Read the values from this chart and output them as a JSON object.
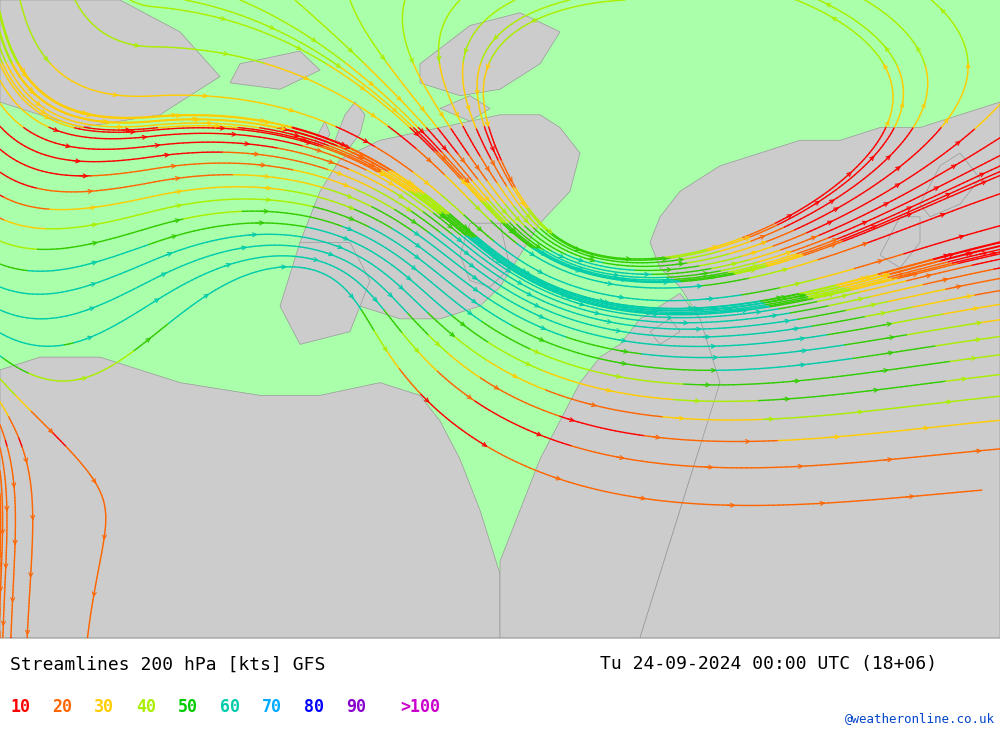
{
  "title_left": "Streamlines 200 hPa [kts] GFS",
  "title_right": "Tu 24-09-2024 00:00 UTC (18+06)",
  "credit": "@weatheronline.co.uk",
  "legend_values": [
    "10",
    "20",
    "30",
    "40",
    "50",
    "60",
    "70",
    "80",
    "90",
    ">100"
  ],
  "legend_colors": [
    "#ff0000",
    "#ff6600",
    "#ffcc00",
    "#aaee00",
    "#00cc00",
    "#00ccaa",
    "#00aaff",
    "#0000ff",
    "#8800cc",
    "#cc00cc"
  ],
  "bg_color": "#aaffaa",
  "land_color": "#cccccc",
  "land_border_color": "#999999",
  "figsize": [
    10.0,
    7.33
  ],
  "dpi": 100,
  "font_title": 13,
  "font_credit": 9,
  "font_legend": 12
}
